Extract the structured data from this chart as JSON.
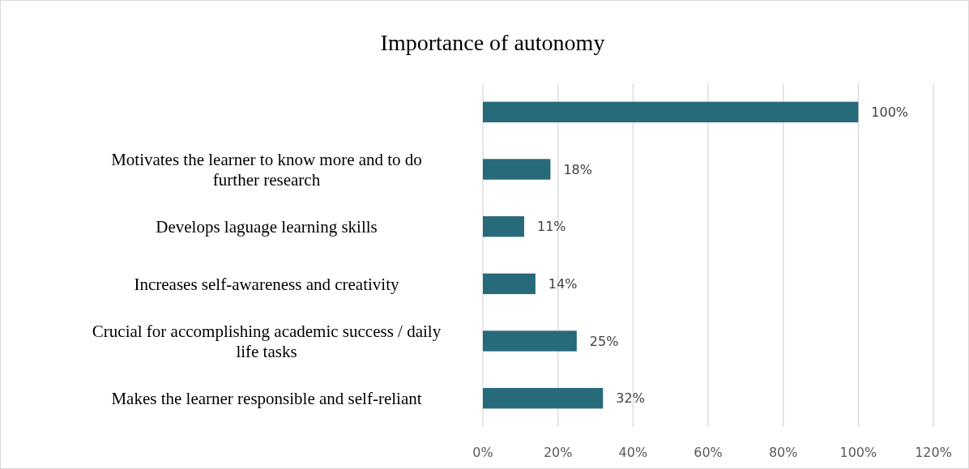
{
  "chart_data": {
    "type": "bar",
    "orientation": "horizontal",
    "title": "Importance of autonomy",
    "categories": [
      null,
      "Motivates the learner to know more and to do further research",
      "Develops laguage learning skills",
      "Increases self-awareness and creativity",
      "Crucial for accomplishing academic success / daily life tasks",
      "Makes the learner responsible and self-reliant"
    ],
    "values": [
      100,
      18,
      11,
      14,
      25,
      32
    ],
    "value_labels": [
      "100%",
      "18%",
      "11%",
      "14%",
      "25%",
      "32%"
    ],
    "color": "#276a7a",
    "xlim": [
      0,
      120
    ],
    "xticks": [
      {
        "value": 0,
        "label": "0%"
      },
      {
        "value": 20,
        "label": "20%"
      },
      {
        "value": 40,
        "label": "40%"
      },
      {
        "value": 60,
        "label": "60%"
      },
      {
        "value": 80,
        "label": "80%"
      },
      {
        "value": 100,
        "label": "100%"
      },
      {
        "value": 120,
        "label": "120%"
      }
    ],
    "grid": "x"
  }
}
